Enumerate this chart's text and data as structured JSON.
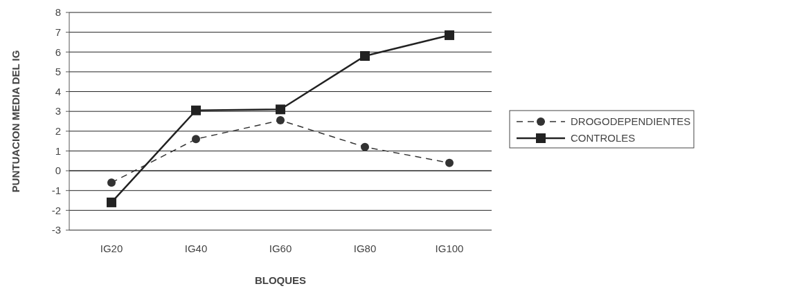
{
  "chart_data": {
    "type": "line",
    "xlabel": "BLOQUES",
    "ylabel": "PUNTUACION MEDIA DEL IG",
    "categories": [
      "IG20",
      "IG40",
      "IG60",
      "IG80",
      "IG100"
    ],
    "series": [
      {
        "name": "DROGODEPENDIENTES",
        "color": "#333333",
        "values": [
          -0.6,
          1.6,
          2.55,
          1.2,
          0.4
        ],
        "marker": "circle",
        "line_style": "dashed"
      },
      {
        "name": "CONTROLES",
        "color": "#222222",
        "values": [
          -1.6,
          3.05,
          3.1,
          5.8,
          6.85
        ],
        "marker": "square",
        "line_style": "solid"
      }
    ],
    "ylim": [
      -3,
      8
    ],
    "yticks": [
      -3,
      -2,
      -1,
      0,
      1,
      2,
      3,
      4,
      5,
      6,
      7,
      8
    ],
    "grid": "y",
    "legend": "right"
  }
}
